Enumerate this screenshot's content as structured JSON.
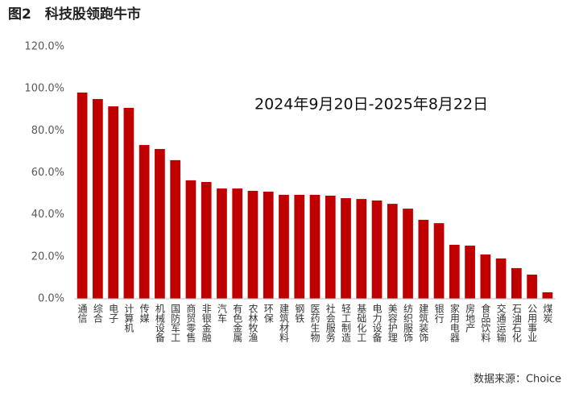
{
  "chart_data": {
    "type": "bar",
    "title": "图2　科技股领跑牛市",
    "annotation": "2024年9月20日-2025年8月22日",
    "source": "数据来源：Choice",
    "categories": [
      "通信",
      "综合",
      "电子",
      "计算机",
      "传媒",
      "机械设备",
      "国防军工",
      "商贸零售",
      "非银金融",
      "汽车",
      "有色金属",
      "农林牧渔",
      "环保",
      "建筑材料",
      "钢铁",
      "医药生物",
      "社会服务",
      "轻工制造",
      "基础化工",
      "电力设备",
      "美容护理",
      "纺织服饰",
      "建筑装饰",
      "银行",
      "家用电器",
      "房地产",
      "食品饮料",
      "交通运输",
      "石油石化",
      "公用事业",
      "煤炭"
    ],
    "values": [
      98.2,
      95.1,
      91.6,
      90.9,
      73.2,
      71.3,
      66.0,
      56.4,
      55.6,
      52.5,
      52.5,
      51.4,
      51.0,
      49.5,
      49.5,
      49.5,
      49.1,
      47.9,
      47.5,
      46.8,
      45.2,
      42.9,
      37.6,
      36.0,
      25.7,
      25.3,
      21.1,
      19.2,
      14.6,
      11.5,
      3.1
    ],
    "color": "#c00000",
    "ylim": [
      0,
      120
    ],
    "yticks": [
      {
        "value": 0,
        "label": "0.0%"
      },
      {
        "value": 20,
        "label": "20.0%"
      },
      {
        "value": 40,
        "label": "40.0%"
      },
      {
        "value": 60,
        "label": "60.0%"
      },
      {
        "value": 80,
        "label": "80.0%"
      },
      {
        "value": 100,
        "label": "100.0%"
      },
      {
        "value": 120,
        "label": "120.0%"
      }
    ],
    "grid": false
  }
}
